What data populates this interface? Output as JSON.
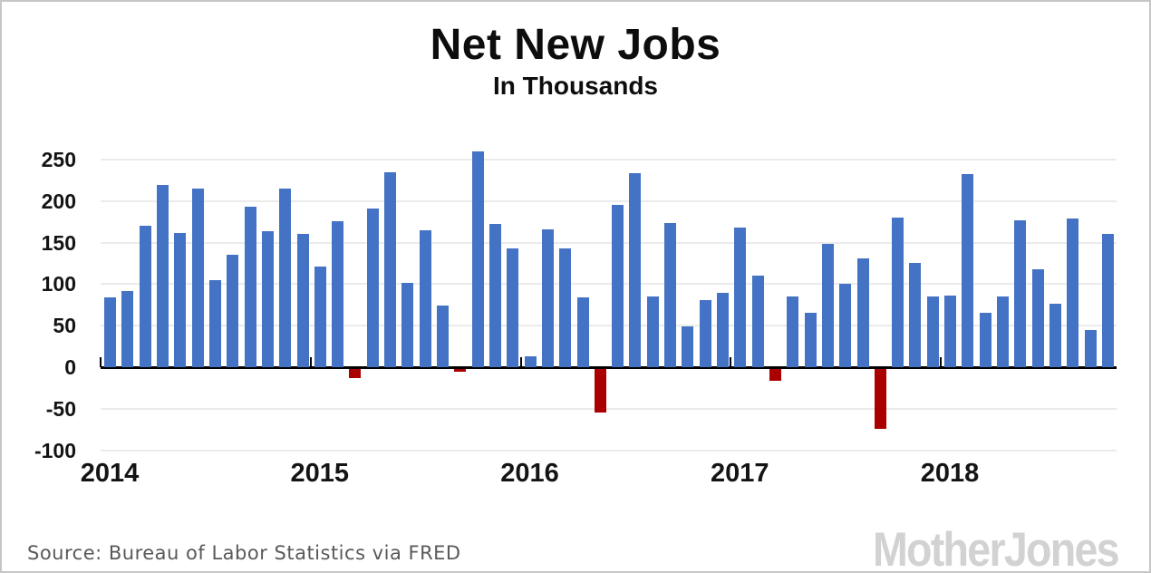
{
  "header": {
    "title": "Net New Jobs",
    "subtitle": "In Thousands"
  },
  "footer": {
    "source": "Source: Bureau of Labor Statistics via FRED",
    "logo": "MotherJones"
  },
  "colors": {
    "positive_bar": "#4472c4",
    "negative_bar": "#aa0000",
    "gridline": "#ebebeb",
    "axis": "#000000",
    "source_text": "#595959",
    "logo_gray": "#d2d2d2"
  },
  "chart_data": {
    "type": "bar",
    "title": "Net New Jobs",
    "subtitle": "In Thousands",
    "xlabel": "",
    "ylabel": "",
    "ylim": [
      -100,
      250
    ],
    "yticks": [
      250,
      200,
      150,
      100,
      50,
      0,
      -50,
      -100
    ],
    "grid": true,
    "legend": "none",
    "x_unit": "month",
    "years": [
      {
        "year": "2014",
        "values": [
          84,
          92,
          170,
          219,
          162,
          215,
          105,
          135,
          193,
          164,
          215,
          161
        ]
      },
      {
        "year": "2015",
        "values": [
          121,
          176,
          -11,
          191,
          235,
          101,
          165,
          74,
          -4,
          260,
          173,
          143
        ]
      },
      {
        "year": "2016",
        "values": [
          13,
          166,
          143,
          84,
          -53,
          195,
          234,
          85,
          174,
          49,
          81,
          90
        ]
      },
      {
        "year": "2017",
        "values": [
          168,
          110,
          -15,
          85,
          65,
          148,
          100,
          131,
          -73,
          180,
          126,
          85
        ]
      },
      {
        "year": "2018",
        "values": [
          86,
          233,
          66,
          85,
          177,
          118,
          76,
          179,
          45,
          160
        ]
      }
    ]
  }
}
